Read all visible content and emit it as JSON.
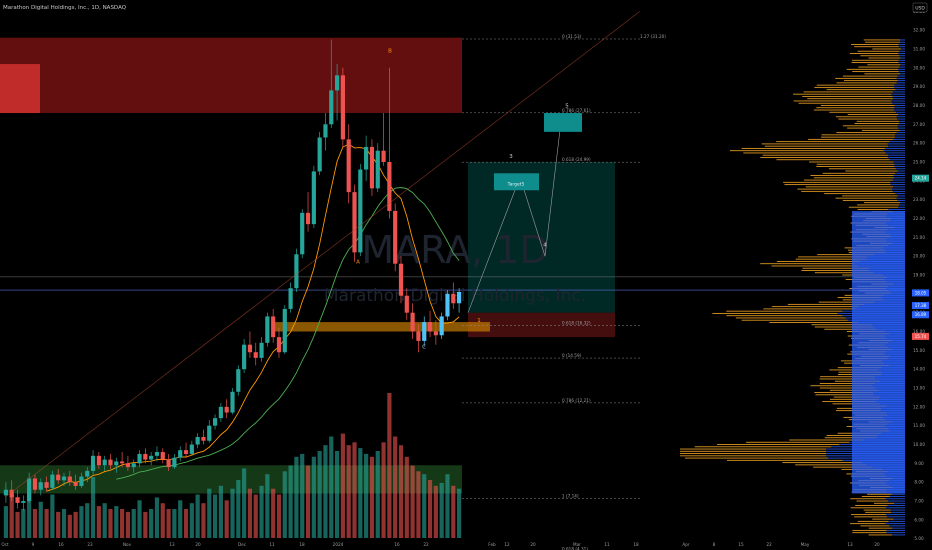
{
  "header": {
    "symbol_line": "Marathon Digital Holdings, Inc., 1D, NASDAQ",
    "currency": "USD"
  },
  "watermark": {
    "ticker": "MARA, 1D",
    "company": "Marathon Digital Holdings, Inc."
  },
  "colors": {
    "up": "#26a69a",
    "up_bright": "#4fc3f7",
    "down": "#ef5350",
    "fib_line": "#8d8d8d",
    "ma_orange": "#ff9800",
    "ma_green": "#4caf50",
    "supply_zone": "#b71c1c",
    "demand_zone": "#2e7d32",
    "target_box": "#00897b",
    "vp_orange": "#f5a623",
    "vp_blue": "#2962ff"
  },
  "chart_data": {
    "type": "candlestick",
    "y_axis": {
      "min": 4.4,
      "max": 33.6,
      "ticks": [
        "33.00",
        "32.00",
        "31.00",
        "30.00",
        "29.00",
        "28.00",
        "27.00",
        "26.00",
        "25.00",
        "24.00",
        "23.00",
        "22.00",
        "21.00",
        "20.00",
        "19.00",
        "18.00",
        "17.00",
        "16.00",
        "15.00",
        "14.00",
        "13.00",
        "12.00",
        "11.00",
        "10.00",
        "9.00",
        "8.00",
        "7.00",
        "6.00",
        "5.00"
      ]
    },
    "x_axis": {
      "ticks": [
        "Oct",
        "9",
        "16",
        "23",
        "Nov",
        "13",
        "20",
        "Dec",
        "11",
        "18",
        "2024",
        "16",
        "22",
        "Feb",
        "12",
        "20",
        "Mar",
        "11",
        "18",
        "Apr",
        "8",
        "15",
        "22",
        "May",
        "13",
        "20"
      ]
    },
    "price_labels": [
      {
        "value": 24.14,
        "color": "#26a69a"
      },
      {
        "value": 18.05,
        "color": "#2962ff"
      },
      {
        "value": 17.38,
        "color": "#2962ff"
      },
      {
        "value": 16.89,
        "color": "#2962ff"
      },
      {
        "value": 15.74,
        "color": "#ef5350"
      }
    ],
    "fib_levels": [
      {
        "label": "0 (31.53)",
        "value": 31.53
      },
      {
        "label": "0.786 (27.61)",
        "value": 27.61
      },
      {
        "label": "0.618 (24.99)",
        "value": 24.99
      },
      {
        "label": "0.618 (16.32)",
        "value": 16.32
      },
      {
        "label": "0 (14.59)",
        "value": 14.59
      },
      {
        "label": "0.786 (12.21)",
        "value": 12.21
      },
      {
        "label": "1 (7.14)",
        "value": 7.14
      },
      {
        "label": "0.618 (4.31)",
        "value": 4.31
      }
    ],
    "fib_right_label": "1.27 (31.20)",
    "wave_labels": [
      {
        "label": "B",
        "value": 30.8
      },
      {
        "label": "A",
        "value": 19.6
      },
      {
        "label": "C",
        "value": 15.1
      },
      {
        "label": "1",
        "value": 16.5
      },
      {
        "label": "3",
        "value": 25.2
      },
      {
        "label": "4",
        "value": 20.5
      },
      {
        "label": "5",
        "value": 27.9
      }
    ],
    "target_label": "Target5",
    "candles": [
      {
        "o": 7.3,
        "h": 8.0,
        "l": 6.9,
        "c": 7.6
      },
      {
        "o": 7.6,
        "h": 8.1,
        "l": 7.0,
        "c": 7.2
      },
      {
        "o": 7.2,
        "h": 7.6,
        "l": 6.6,
        "c": 6.9
      },
      {
        "o": 6.9,
        "h": 7.3,
        "l": 6.5,
        "c": 7.0
      },
      {
        "o": 7.0,
        "h": 8.5,
        "l": 6.9,
        "c": 8.2
      },
      {
        "o": 8.2,
        "h": 8.4,
        "l": 7.4,
        "c": 7.6
      },
      {
        "o": 7.6,
        "h": 8.2,
        "l": 7.3,
        "c": 8.0
      },
      {
        "o": 8.0,
        "h": 8.3,
        "l": 7.5,
        "c": 7.7
      },
      {
        "o": 7.7,
        "h": 8.6,
        "l": 7.6,
        "c": 8.4
      },
      {
        "o": 8.4,
        "h": 8.7,
        "l": 7.9,
        "c": 8.1
      },
      {
        "o": 8.1,
        "h": 8.5,
        "l": 7.8,
        "c": 8.3
      },
      {
        "o": 8.3,
        "h": 8.6,
        "l": 7.8,
        "c": 8.0
      },
      {
        "o": 8.0,
        "h": 8.4,
        "l": 7.6,
        "c": 7.8
      },
      {
        "o": 7.8,
        "h": 8.5,
        "l": 7.7,
        "c": 8.3
      },
      {
        "o": 8.3,
        "h": 8.8,
        "l": 8.0,
        "c": 8.6
      },
      {
        "o": 8.6,
        "h": 9.7,
        "l": 8.4,
        "c": 9.4
      },
      {
        "o": 9.4,
        "h": 9.6,
        "l": 8.7,
        "c": 8.9
      },
      {
        "o": 8.9,
        "h": 9.4,
        "l": 8.6,
        "c": 9.2
      },
      {
        "o": 9.2,
        "h": 9.5,
        "l": 8.7,
        "c": 8.9
      },
      {
        "o": 8.9,
        "h": 9.3,
        "l": 8.5,
        "c": 9.1
      },
      {
        "o": 9.1,
        "h": 9.6,
        "l": 8.8,
        "c": 9.0
      },
      {
        "o": 9.0,
        "h": 9.4,
        "l": 8.6,
        "c": 8.8
      },
      {
        "o": 8.8,
        "h": 9.2,
        "l": 8.5,
        "c": 9.0
      },
      {
        "o": 9.0,
        "h": 9.7,
        "l": 8.8,
        "c": 9.5
      },
      {
        "o": 9.5,
        "h": 9.8,
        "l": 9.0,
        "c": 9.2
      },
      {
        "o": 9.2,
        "h": 9.6,
        "l": 8.9,
        "c": 9.4
      },
      {
        "o": 9.4,
        "h": 9.9,
        "l": 9.1,
        "c": 9.6
      },
      {
        "o": 9.6,
        "h": 9.8,
        "l": 9.0,
        "c": 9.2
      },
      {
        "o": 9.2,
        "h": 9.5,
        "l": 8.6,
        "c": 8.8
      },
      {
        "o": 8.8,
        "h": 9.5,
        "l": 8.7,
        "c": 9.3
      },
      {
        "o": 9.3,
        "h": 9.9,
        "l": 9.1,
        "c": 9.7
      },
      {
        "o": 9.7,
        "h": 10.1,
        "l": 9.3,
        "c": 9.5
      },
      {
        "o": 9.5,
        "h": 10.2,
        "l": 9.4,
        "c": 10.0
      },
      {
        "o": 10.0,
        "h": 10.6,
        "l": 9.8,
        "c": 10.4
      },
      {
        "o": 10.4,
        "h": 10.8,
        "l": 10.0,
        "c": 10.2
      },
      {
        "o": 10.2,
        "h": 11.3,
        "l": 10.1,
        "c": 11.0
      },
      {
        "o": 11.0,
        "h": 11.6,
        "l": 10.8,
        "c": 11.4
      },
      {
        "o": 11.4,
        "h": 12.2,
        "l": 11.2,
        "c": 12.0
      },
      {
        "o": 12.0,
        "h": 12.4,
        "l": 11.4,
        "c": 11.7
      },
      {
        "o": 11.7,
        "h": 13.0,
        "l": 11.6,
        "c": 12.8
      },
      {
        "o": 12.8,
        "h": 14.2,
        "l": 12.6,
        "c": 14.0
      },
      {
        "o": 14.0,
        "h": 15.6,
        "l": 13.8,
        "c": 15.3
      },
      {
        "o": 15.3,
        "h": 16.0,
        "l": 14.6,
        "c": 14.9
      },
      {
        "o": 14.9,
        "h": 15.4,
        "l": 14.2,
        "c": 14.6
      },
      {
        "o": 14.6,
        "h": 15.7,
        "l": 14.4,
        "c": 15.4
      },
      {
        "o": 15.4,
        "h": 17.0,
        "l": 15.2,
        "c": 16.8
      },
      {
        "o": 16.8,
        "h": 17.2,
        "l": 15.4,
        "c": 15.7
      },
      {
        "o": 15.7,
        "h": 16.2,
        "l": 14.6,
        "c": 14.9
      },
      {
        "o": 14.9,
        "h": 17.4,
        "l": 14.8,
        "c": 17.2
      },
      {
        "o": 17.2,
        "h": 18.6,
        "l": 17.0,
        "c": 18.3
      },
      {
        "o": 18.3,
        "h": 20.4,
        "l": 18.1,
        "c": 20.1
      },
      {
        "o": 20.1,
        "h": 22.5,
        "l": 19.9,
        "c": 22.3
      },
      {
        "o": 22.3,
        "h": 23.4,
        "l": 21.3,
        "c": 21.7
      },
      {
        "o": 21.7,
        "h": 24.8,
        "l": 21.5,
        "c": 24.5
      },
      {
        "o": 24.5,
        "h": 26.6,
        "l": 24.3,
        "c": 26.3
      },
      {
        "o": 26.3,
        "h": 27.6,
        "l": 25.6,
        "c": 27.0
      },
      {
        "o": 27.0,
        "h": 31.5,
        "l": 26.8,
        "c": 28.8
      },
      {
        "o": 28.8,
        "h": 30.2,
        "l": 27.2,
        "c": 29.6
      },
      {
        "o": 29.6,
        "h": 30.0,
        "l": 25.8,
        "c": 26.2
      },
      {
        "o": 26.2,
        "h": 27.0,
        "l": 22.8,
        "c": 23.4
      },
      {
        "o": 23.4,
        "h": 23.8,
        "l": 19.7,
        "c": 20.2
      },
      {
        "o": 20.2,
        "h": 24.9,
        "l": 20.0,
        "c": 24.6
      },
      {
        "o": 24.6,
        "h": 26.4,
        "l": 24.0,
        "c": 25.8
      },
      {
        "o": 25.8,
        "h": 26.2,
        "l": 23.2,
        "c": 23.6
      },
      {
        "o": 23.6,
        "h": 26.0,
        "l": 23.4,
        "c": 25.6
      },
      {
        "o": 25.6,
        "h": 27.6,
        "l": 24.8,
        "c": 25.0
      },
      {
        "o": 25.0,
        "h": 30.0,
        "l": 22.0,
        "c": 22.4
      },
      {
        "o": 22.4,
        "h": 22.8,
        "l": 19.2,
        "c": 19.6
      },
      {
        "o": 19.6,
        "h": 20.0,
        "l": 17.5,
        "c": 17.9
      },
      {
        "o": 17.9,
        "h": 18.3,
        "l": 16.6,
        "c": 17.0
      },
      {
        "o": 17.0,
        "h": 17.5,
        "l": 15.6,
        "c": 16.0
      },
      {
        "o": 16.0,
        "h": 16.4,
        "l": 14.9,
        "c": 15.5
      },
      {
        "o": 15.5,
        "h": 16.8,
        "l": 15.2,
        "c": 16.5
      },
      {
        "o": 16.5,
        "h": 17.1,
        "l": 15.7,
        "c": 16.0
      },
      {
        "o": 16.0,
        "h": 16.6,
        "l": 15.3,
        "c": 15.8
      },
      {
        "o": 15.8,
        "h": 17.0,
        "l": 15.6,
        "c": 16.8
      },
      {
        "o": 16.8,
        "h": 18.2,
        "l": 16.6,
        "c": 18.0
      },
      {
        "o": 18.0,
        "h": 18.6,
        "l": 17.2,
        "c": 17.5
      },
      {
        "o": 17.5,
        "h": 18.3,
        "l": 17.0,
        "c": 18.1
      }
    ],
    "volume": [
      0.22,
      0.3,
      0.18,
      0.2,
      0.34,
      0.2,
      0.25,
      0.2,
      0.3,
      0.18,
      0.2,
      0.16,
      0.18,
      0.22,
      0.24,
      0.42,
      0.22,
      0.24,
      0.2,
      0.22,
      0.2,
      0.18,
      0.2,
      0.26,
      0.18,
      0.2,
      0.28,
      0.24,
      0.2,
      0.2,
      0.26,
      0.2,
      0.24,
      0.3,
      0.24,
      0.34,
      0.3,
      0.36,
      0.26,
      0.34,
      0.4,
      0.48,
      0.34,
      0.3,
      0.36,
      0.44,
      0.34,
      0.3,
      0.46,
      0.5,
      0.56,
      0.58,
      0.5,
      0.56,
      0.6,
      0.64,
      0.7,
      0.6,
      0.72,
      0.64,
      0.66,
      0.62,
      0.58,
      0.56,
      0.6,
      0.66,
      1.0,
      0.7,
      0.64,
      0.56,
      0.5,
      0.46,
      0.44,
      0.4,
      0.36,
      0.38,
      0.44,
      0.36,
      0.34
    ]
  }
}
